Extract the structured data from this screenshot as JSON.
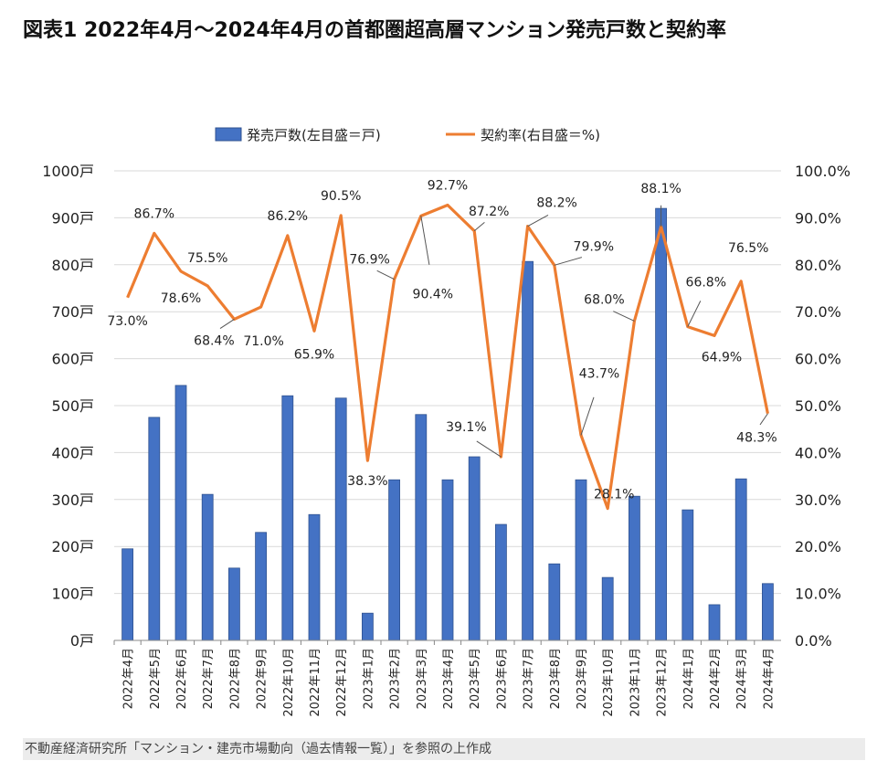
{
  "chart_data": {
    "type": "bar+line",
    "title": "図表1 2022年4月〜2024年4月の首都圏超高層マンション発売戸数と契約率",
    "categories": [
      "2022年4月",
      "2022年5月",
      "2022年6月",
      "2022年7月",
      "2022年8月",
      "2022年9月",
      "2022年10月",
      "2022年11月",
      "2022年12月",
      "2023年1月",
      "2023年2月",
      "2023年3月",
      "2023年4月",
      "2023年5月",
      "2023年6月",
      "2023年7月",
      "2023年8月",
      "2023年9月",
      "2023年10月",
      "2023年11月",
      "2023年12月",
      "2024年1月",
      "2024年2月",
      "2024年3月",
      "2024年4月"
    ],
    "series": [
      {
        "name": "発売戸数(左目盛＝戸)",
        "type": "bar",
        "axis": "left",
        "color": "#4472C4",
        "values": [
          195,
          475,
          543,
          311,
          154,
          230,
          521,
          268,
          516,
          58,
          342,
          481,
          342,
          391,
          247,
          807,
          163,
          342,
          134,
          307,
          920,
          278,
          76,
          344,
          121
        ]
      },
      {
        "name": "契約率(右目盛＝%)",
        "type": "line",
        "axis": "right",
        "color": "#ED7D31",
        "values": [
          73.0,
          86.7,
          78.6,
          75.5,
          68.4,
          71.0,
          86.2,
          65.9,
          90.5,
          38.3,
          76.9,
          90.4,
          92.7,
          87.2,
          39.1,
          88.2,
          79.9,
          43.7,
          28.1,
          68.0,
          88.1,
          66.8,
          64.9,
          76.5,
          48.3
        ],
        "labels": [
          "73.0%",
          "86.7%",
          "78.6%",
          "75.5%",
          "68.4%",
          "71.0%",
          "86.2%",
          "65.9%",
          "90.5%",
          "38.3%",
          "76.9%",
          "90.4%",
          "92.7%",
          "87.2%",
          "39.1%",
          "88.2%",
          "79.9%",
          "43.7%",
          "28.1%",
          "68.0%",
          "88.1%",
          "66.8%",
          "64.9%",
          "76.5%",
          "48.3%"
        ]
      }
    ],
    "y_left": {
      "range": [
        0,
        1000
      ],
      "ticks": [
        "0戸",
        "100戸",
        "200戸",
        "300戸",
        "400戸",
        "500戸",
        "600戸",
        "700戸",
        "800戸",
        "900戸",
        "1000戸"
      ]
    },
    "y_right": {
      "range": [
        0,
        100
      ],
      "ticks": [
        "0.0%",
        "10.0%",
        "20.0%",
        "30.0%",
        "40.0%",
        "50.0%",
        "60.0%",
        "70.0%",
        "80.0%",
        "90.0%",
        "100.0%"
      ]
    },
    "grid": true,
    "legend": "top"
  },
  "source": "不動産経済研究所「マンション・建売市場動向（過去情報一覧）」を参照の上作成"
}
